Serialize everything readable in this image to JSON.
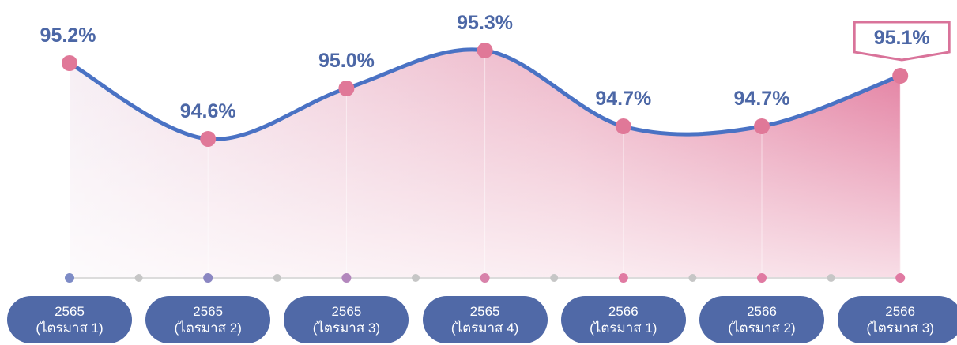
{
  "chart_data": {
    "type": "line",
    "categories": [
      "2565\n(ไตรมาส 1)",
      "2565\n(ไตรมาส 2)",
      "2565\n(ไตรมาส 3)",
      "2565\n(ไตรมาส 4)",
      "2566\n(ไตรมาส 1)",
      "2566\n(ไตรมาส 2)",
      "2566\n(ไตรมาส 3)"
    ],
    "values": [
      95.2,
      94.6,
      95.0,
      95.3,
      94.7,
      94.7,
      95.1
    ],
    "value_labels": [
      "95.2%",
      "94.6%",
      "95.0%",
      "95.3%",
      "94.7%",
      "94.7%",
      "95.1%"
    ],
    "color": "#4a72c4",
    "marker_color": "#e07898",
    "ylim": [
      93.5,
      95.5
    ]
  }
}
